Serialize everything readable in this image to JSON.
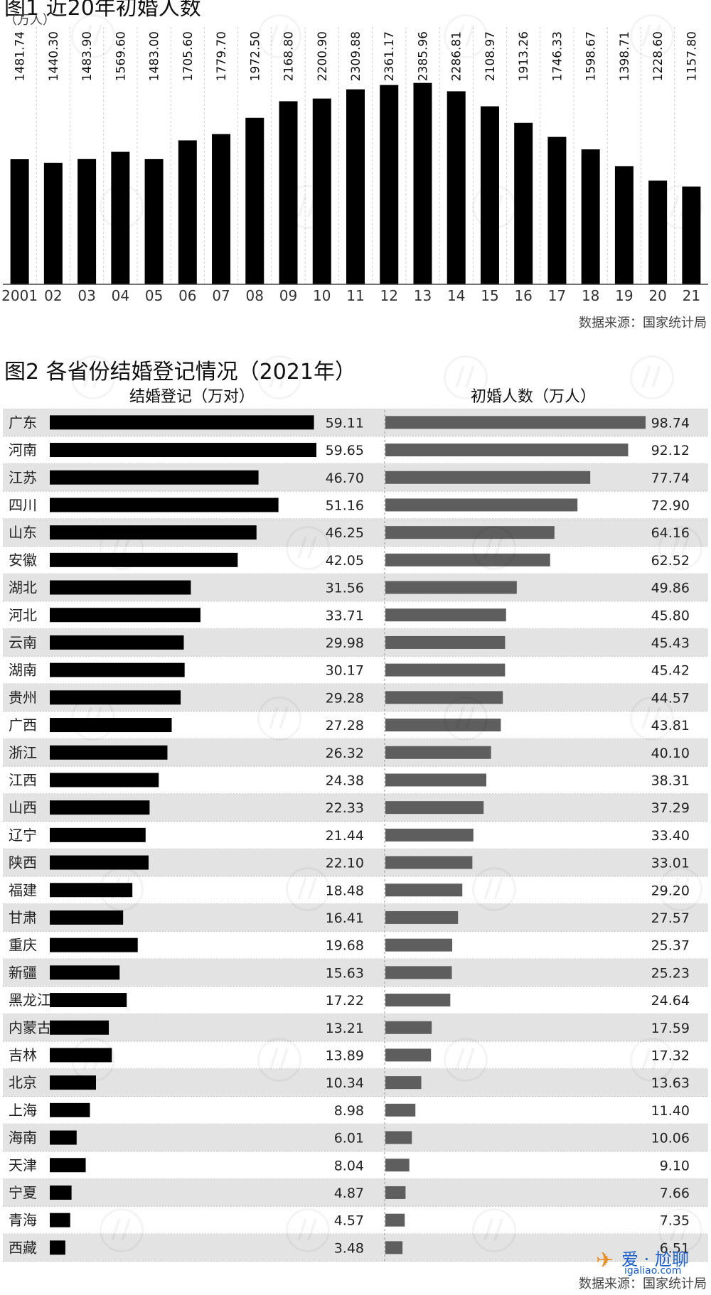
{
  "chart1": {
    "title": "图1 近20年初婚人数",
    "unit": "（万人）",
    "source": "数据来源：国家统计局",
    "chart_data": {
      "type": "bar",
      "categories": [
        "2001",
        "02",
        "03",
        "04",
        "05",
        "06",
        "07",
        "08",
        "09",
        "10",
        "11",
        "12",
        "13",
        "14",
        "15",
        "16",
        "17",
        "18",
        "19",
        "20",
        "21"
      ],
      "value_labels": [
        "1481.74",
        "1440.30",
        "1483.90",
        "1569.60",
        "1483.00",
        "1705.60",
        "1779.70",
        "1972.50",
        "2168.80",
        "2200.90",
        "2309.88",
        "2361.17",
        "2385.96",
        "2286.81",
        "2108.97",
        "1913.26",
        "1746.33",
        "1598.67",
        "1398.71",
        "1228.60",
        "1157.80"
      ],
      "values": [
        1481.74,
        1440.3,
        1483.9,
        1569.6,
        1483.0,
        1705.6,
        1779.7,
        1972.5,
        2168.8,
        2200.9,
        2309.88,
        2361.17,
        2385.96,
        2286.81,
        2108.97,
        1913.26,
        1746.33,
        1598.67,
        1398.71,
        1228.6,
        1157.8
      ],
      "ylim": [
        0,
        2400
      ],
      "bar_color": "#000000"
    }
  },
  "chart2": {
    "title": "图2 各省份结婚登记情况（2021年）",
    "source": "数据来源：国家统计局",
    "chart_data": {
      "type": "bar",
      "orientation": "horizontal",
      "categories": [
        "广东",
        "河南",
        "江苏",
        "四川",
        "山东",
        "安徽",
        "湖北",
        "河北",
        "云南",
        "湖南",
        "贵州",
        "广西",
        "浙江",
        "江西",
        "山西",
        "辽宁",
        "陕西",
        "福建",
        "甘肃",
        "重庆",
        "新疆",
        "黑龙江",
        "内蒙古",
        "吉林",
        "北京",
        "上海",
        "海南",
        "天津",
        "宁夏",
        "青海",
        "西藏"
      ],
      "series": [
        {
          "name": "结婚登记（万对）",
          "color": "#000000",
          "value_labels": [
            "59.11",
            "59.65",
            "46.70",
            "51.16",
            "46.25",
            "42.05",
            "31.56",
            "33.71",
            "29.98",
            "30.17",
            "29.28",
            "27.28",
            "26.32",
            "24.38",
            "22.33",
            "21.44",
            "22.10",
            "18.48",
            "16.41",
            "19.68",
            "15.63",
            "17.22",
            "13.21",
            "13.89",
            "10.34",
            "8.98",
            "6.01",
            "8.04",
            "4.87",
            "4.57",
            "3.48"
          ],
          "values": [
            59.11,
            59.65,
            46.7,
            51.16,
            46.25,
            42.05,
            31.56,
            33.71,
            29.98,
            30.17,
            29.28,
            27.28,
            26.32,
            24.38,
            22.33,
            21.44,
            22.1,
            18.48,
            16.41,
            19.68,
            15.63,
            17.22,
            13.21,
            13.89,
            10.34,
            8.98,
            6.01,
            8.04,
            4.87,
            4.57,
            3.48
          ]
        },
        {
          "name": "初婚人数（万人）",
          "color": "#5e5e5e",
          "value_labels": [
            "98.74",
            "92.12",
            "77.74",
            "72.90",
            "64.16",
            "62.52",
            "49.86",
            "45.80",
            "45.43",
            "45.42",
            "44.57",
            "43.81",
            "40.10",
            "38.31",
            "37.29",
            "33.40",
            "33.01",
            "29.20",
            "27.57",
            "25.37",
            "25.23",
            "24.64",
            "17.59",
            "17.32",
            "13.63",
            "11.40",
            "10.06",
            "9.10",
            "7.66",
            "7.35",
            "6.51"
          ],
          "values": [
            98.74,
            92.12,
            77.74,
            72.9,
            64.16,
            62.52,
            49.86,
            45.8,
            45.43,
            45.42,
            44.57,
            43.81,
            40.1,
            38.31,
            37.29,
            33.4,
            33.01,
            29.2,
            27.57,
            25.37,
            25.23,
            24.64,
            17.59,
            17.32,
            13.63,
            11.4,
            10.06,
            9.1,
            7.66,
            7.35,
            6.51
          ]
        }
      ],
      "row_stripe_color": "#e3e3e3"
    }
  },
  "watermark": {
    "brand": "爱 · 尬聊",
    "url": "igaliao.com"
  }
}
